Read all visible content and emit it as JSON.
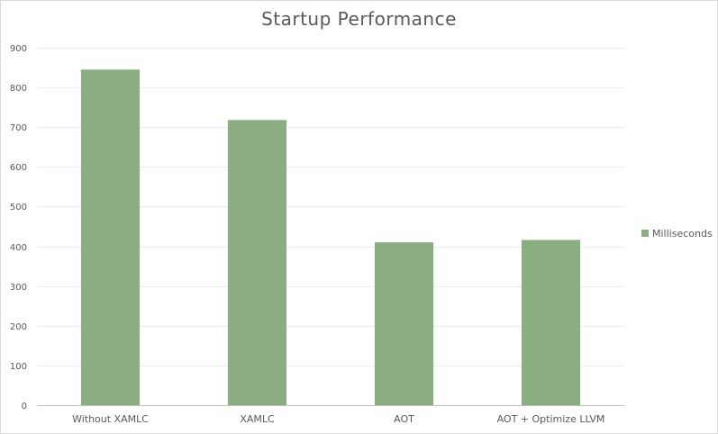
{
  "chart_data": {
    "type": "bar",
    "title": "Startup Performance",
    "categories": [
      "Without XAMLC",
      "XAMLC",
      "AOT",
      "AOT + Optimize LLVM"
    ],
    "series": [
      {
        "name": "Milliseconds",
        "values": [
          845,
          718,
          410,
          416
        ],
        "color": "#8aae82"
      }
    ],
    "ylim": [
      0,
      900
    ],
    "yticks": [
      0,
      100,
      200,
      300,
      400,
      500,
      600,
      700,
      800,
      900
    ],
    "grid": true,
    "legend_position": "right",
    "xlabel": "",
    "ylabel": ""
  }
}
